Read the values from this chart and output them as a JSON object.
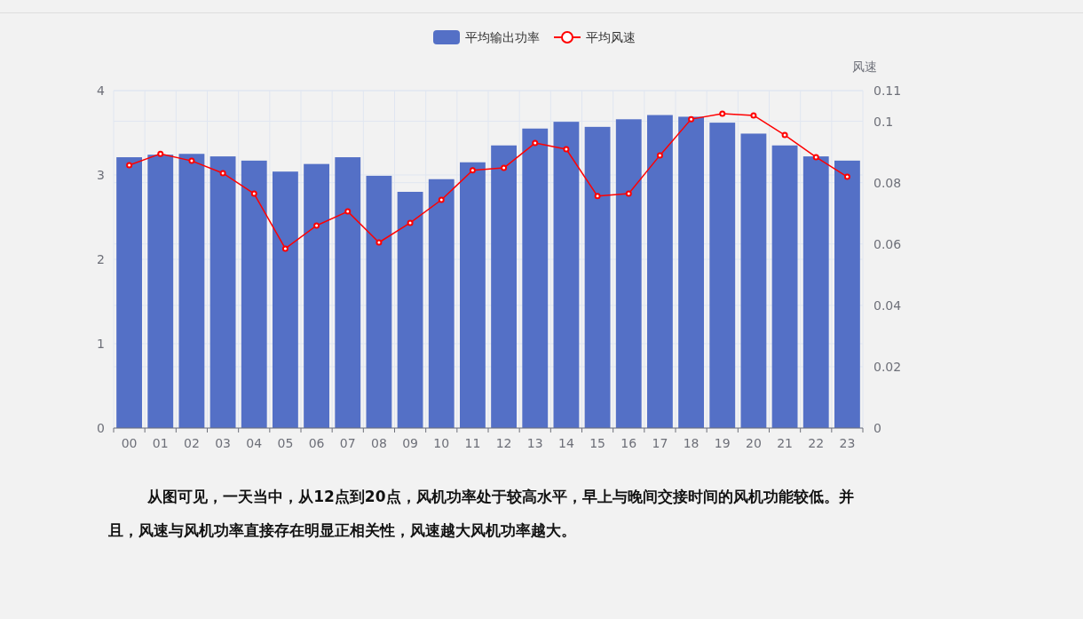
{
  "chart_data": {
    "type": "bar",
    "categories": [
      "00",
      "01",
      "02",
      "03",
      "04",
      "05",
      "06",
      "07",
      "08",
      "09",
      "10",
      "11",
      "12",
      "13",
      "14",
      "15",
      "16",
      "17",
      "18",
      "19",
      "20",
      "21",
      "22",
      "23"
    ],
    "series": [
      {
        "name": "平均输出功率",
        "color": "#5470c6",
        "values": [
          3.21,
          3.24,
          3.25,
          3.22,
          3.17,
          3.04,
          3.13,
          3.21,
          2.99,
          2.8,
          2.95,
          3.15,
          3.35,
          3.55,
          3.63,
          3.57,
          3.66,
          3.71,
          3.69,
          3.62,
          3.49,
          3.35,
          3.22,
          3.17
        ]
      },
      {
        "name": "平均风速",
        "type": "line",
        "axis": "y2",
        "color": "#ff0000",
        "values": [
          0.0857,
          0.0894,
          0.0871,
          0.0831,
          0.0764,
          0.0585,
          0.066,
          0.0706,
          0.0605,
          0.0669,
          0.0744,
          0.084,
          0.0848,
          0.0929,
          0.0909,
          0.0756,
          0.0764,
          0.0889,
          0.1007,
          0.1025,
          0.1019,
          0.0955,
          0.0883,
          0.0819
        ]
      }
    ],
    "ylim": [
      0,
      4
    ],
    "yticks": [
      0,
      1,
      2,
      3,
      4
    ],
    "y2lim": [
      0,
      0.11
    ],
    "y2ticks": [
      0,
      0.02,
      0.04,
      0.06,
      0.08,
      0.1,
      0.11
    ],
    "y2label": "风速",
    "grid": true,
    "legend": "top",
    "marker": "circle",
    "annotations": [
      "从图可见，一天当中，从12点到20点，风机功率处于较高水平，早上与晚间交接时间的风机功能较低。并且，风速与风机功率直接存在明显正相关性，风速越大风机功率越大。"
    ]
  }
}
